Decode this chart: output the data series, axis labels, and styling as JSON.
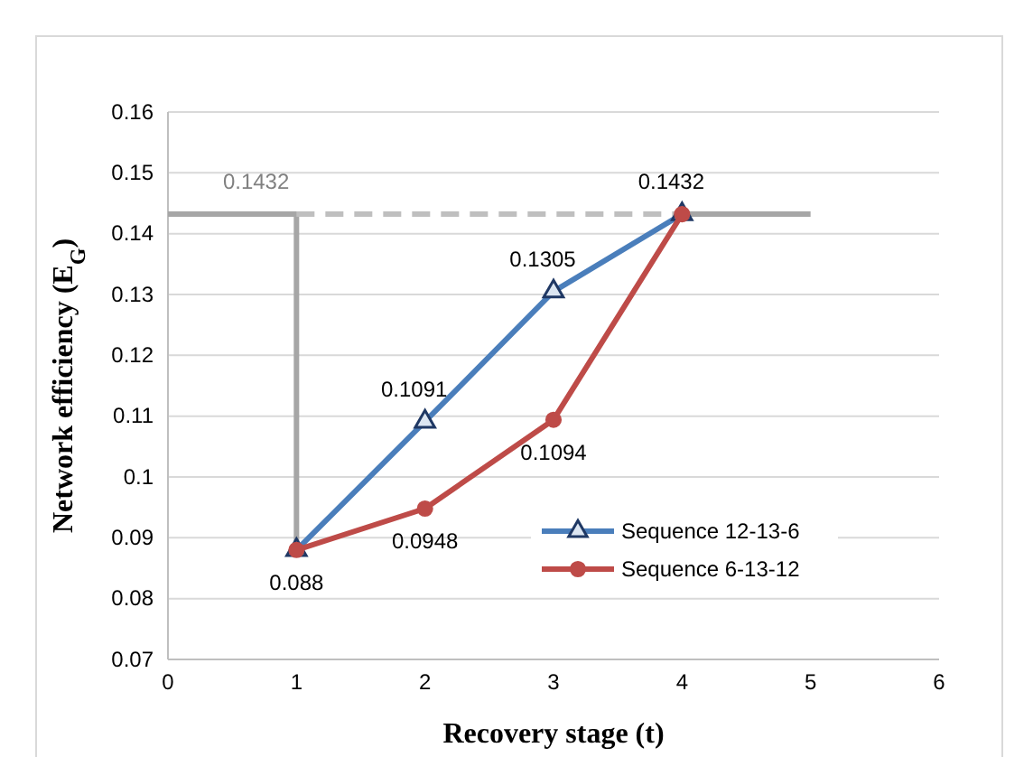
{
  "chart_data": {
    "type": "line",
    "xlabel": "Recovery stage (t)",
    "ylabel": "Network efficiency (E$_{G}$)",
    "xlim": [
      0,
      6
    ],
    "xticks": [
      0,
      1,
      2,
      3,
      4,
      5,
      6
    ],
    "ylim": [
      0.07,
      0.16
    ],
    "yticks": [
      0.07,
      0.08,
      0.09,
      0.1,
      0.11,
      0.12,
      0.13,
      0.14,
      0.15,
      0.16
    ],
    "grid": "y",
    "legend": "bottom right",
    "series": [
      {
        "color": "#a6a6a6",
        "x": [
          0,
          1,
          1
        ],
        "values": [
          0.1432,
          0.1432,
          0.088
        ],
        "line_style": "solid",
        "value_labels": [
          null,
          "0.1432",
          null
        ]
      },
      {
        "color": "#bfbfbf",
        "x": [
          1,
          4
        ],
        "values": [
          0.1432,
          0.1432
        ],
        "line_style": "dashed"
      },
      {
        "color": "#a6a6a6",
        "x": [
          4,
          5
        ],
        "values": [
          0.1432,
          0.1432
        ],
        "line_style": "solid"
      },
      {
        "name": "Sequence 12-13-6",
        "color": "#4a7ebb",
        "x": [
          1,
          2,
          3,
          4
        ],
        "values": [
          0.088,
          0.1091,
          0.1305,
          0.1432
        ],
        "marker": "triangle",
        "line_style": "solid",
        "value_labels": [
          null,
          "0.1091",
          "0.1305",
          "0.1432"
        ]
      },
      {
        "name": "Sequence 6-13-12",
        "color": "#be4b48",
        "x": [
          1,
          2,
          3,
          4
        ],
        "values": [
          0.088,
          0.0948,
          0.1094,
          0.1432
        ],
        "marker": "circle",
        "line_style": "solid",
        "value_labels": [
          "0.088",
          "0.0948",
          "0.1094",
          null
        ]
      }
    ]
  }
}
